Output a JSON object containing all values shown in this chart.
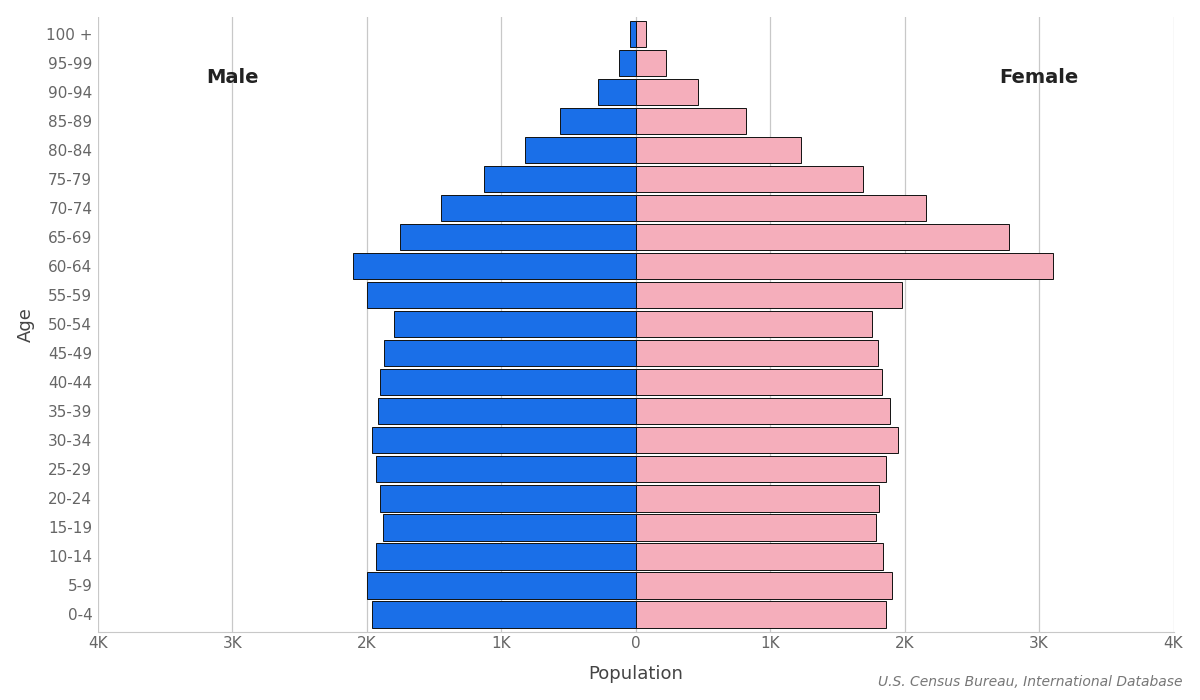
{
  "age_groups": [
    "0-4",
    "5-9",
    "10-14",
    "15-19",
    "20-24",
    "25-29",
    "30-34",
    "35-39",
    "40-44",
    "45-49",
    "50-54",
    "55-59",
    "60-64",
    "65-69",
    "70-74",
    "75-79",
    "80-84",
    "85-89",
    "90-94",
    "95-99",
    "100 +"
  ],
  "male": [
    1960,
    2000,
    1930,
    1880,
    1900,
    1930,
    1960,
    1920,
    1900,
    1870,
    1800,
    2000,
    2100,
    1750,
    1450,
    1130,
    820,
    560,
    280,
    125,
    42
  ],
  "female": [
    1860,
    1910,
    1840,
    1790,
    1810,
    1860,
    1950,
    1890,
    1830,
    1800,
    1760,
    1980,
    3100,
    2780,
    2160,
    1690,
    1230,
    820,
    460,
    225,
    78
  ],
  "male_color": "#1A6FE8",
  "female_color": "#F5AEBB",
  "bar_edgecolor": "#111111",
  "bar_linewidth": 0.7,
  "xlabel": "Population",
  "ylabel": "Age",
  "male_label": "Male",
  "female_label": "Female",
  "xlim": [
    -4000,
    4000
  ],
  "xticks": [
    -4000,
    -3000,
    -2000,
    -1000,
    0,
    1000,
    2000,
    3000,
    4000
  ],
  "xtick_labels": [
    "4K",
    "3K",
    "2K",
    "1K",
    "0",
    "1K",
    "2K",
    "3K",
    "4K"
  ],
  "grid_color": "#c8c8c8",
  "bg_color": "#ffffff",
  "source_text": "U.S. Census Bureau, International Database",
  "label_fontsize": 13,
  "tick_fontsize": 11,
  "annotation_fontsize": 14,
  "source_fontsize": 10,
  "bar_height": 0.92
}
